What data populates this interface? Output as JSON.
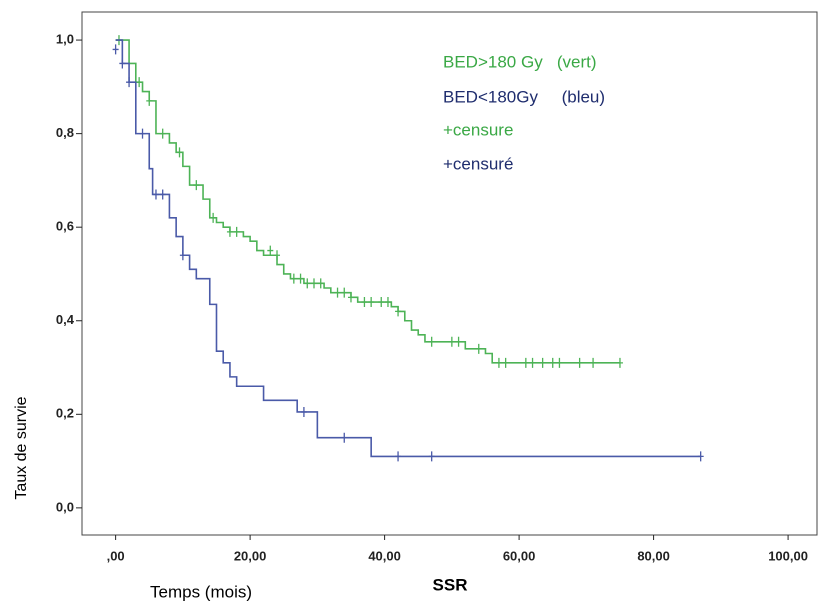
{
  "chart_data": {
    "type": "step",
    "x_label": "SSR",
    "x_caption": "Temps (mois)",
    "y_label": "Taux de survie",
    "xlim": [
      -5,
      104.3
    ],
    "ylim": [
      -0.058,
      1.06
    ],
    "xticks": [
      {
        "value": 0,
        "label": ",00"
      },
      {
        "value": 20,
        "label": "20,00"
      },
      {
        "value": 40,
        "label": "40,00"
      },
      {
        "value": 60,
        "label": "60,00"
      },
      {
        "value": 80,
        "label": "80,00"
      },
      {
        "value": 100,
        "label": "100,00"
      }
    ],
    "yticks": [
      {
        "value": 0,
        "label": "0,0"
      },
      {
        "value": 0.2,
        "label": "0,2"
      },
      {
        "value": 0.4,
        "label": "0,4"
      },
      {
        "value": 0.6,
        "label": "0,6"
      },
      {
        "value": 0.8,
        "label": "0,8"
      },
      {
        "value": 1,
        "label": "1,0"
      }
    ],
    "series": [
      {
        "name": "BED>180 Gy   (vert)",
        "color": "#4db356",
        "text_color": "#3aa845",
        "x": [
          0,
          2,
          3,
          4,
          5,
          6,
          8,
          9,
          10,
          11,
          13,
          14,
          15,
          16,
          17,
          19,
          20,
          21,
          22,
          24,
          25,
          26,
          28,
          31,
          32,
          35,
          36,
          41,
          42,
          43,
          44,
          45,
          46,
          52,
          55,
          56,
          75
        ],
        "values": [
          1.0,
          0.95,
          0.91,
          0.89,
          0.87,
          0.8,
          0.78,
          0.76,
          0.73,
          0.69,
          0.66,
          0.62,
          0.61,
          0.6,
          0.59,
          0.58,
          0.57,
          0.55,
          0.54,
          0.52,
          0.5,
          0.49,
          0.48,
          0.47,
          0.46,
          0.45,
          0.44,
          0.43,
          0.42,
          0.4,
          0.38,
          0.37,
          0.355,
          0.34,
          0.33,
          0.31,
          0.31
        ],
        "censored_x": [
          0.5,
          3.5,
          5,
          7,
          9.5,
          12,
          14.5,
          17,
          18,
          23,
          24,
          26.5,
          27.5,
          28.5,
          29.5,
          30.5,
          33,
          34,
          35,
          37,
          38,
          39.5,
          40.5,
          42,
          47,
          50,
          51,
          54,
          57,
          58,
          61,
          62,
          63.5,
          65,
          66,
          69,
          71,
          75
        ],
        "censored_y": [
          1.0,
          0.91,
          0.87,
          0.8,
          0.76,
          0.69,
          0.62,
          0.59,
          0.59,
          0.55,
          0.54,
          0.49,
          0.49,
          0.48,
          0.48,
          0.48,
          0.46,
          0.46,
          0.45,
          0.44,
          0.44,
          0.44,
          0.44,
          0.42,
          0.355,
          0.355,
          0.355,
          0.34,
          0.31,
          0.31,
          0.31,
          0.31,
          0.31,
          0.31,
          0.31,
          0.31,
          0.31,
          0.31
        ]
      },
      {
        "name": "BED<180Gy     (bleu)",
        "color": "#4a5aa8",
        "text_color": "#1f2d6e",
        "x": [
          0,
          1,
          2,
          3,
          5,
          5.5,
          8,
          9,
          10,
          11,
          12,
          14,
          15,
          16,
          17,
          18,
          22,
          27,
          30,
          38,
          87
        ],
        "values": [
          1.0,
          0.95,
          0.91,
          0.8,
          0.725,
          0.67,
          0.62,
          0.58,
          0.54,
          0.51,
          0.49,
          0.435,
          0.335,
          0.31,
          0.28,
          0.26,
          0.23,
          0.205,
          0.15,
          0.11,
          0.11
        ],
        "censored_x": [
          0,
          1,
          2,
          4,
          6,
          7,
          10,
          28,
          34,
          42,
          47,
          87
        ],
        "censored_y": [
          0.98,
          0.95,
          0.91,
          0.8,
          0.67,
          0.67,
          0.54,
          0.205,
          0.15,
          0.11,
          0.11,
          0.11
        ]
      }
    ],
    "annotations": [
      {
        "text": "+censure",
        "color": "#3aa845"
      },
      {
        "text": "+censuré",
        "color": "#1f2d6e"
      }
    ]
  }
}
